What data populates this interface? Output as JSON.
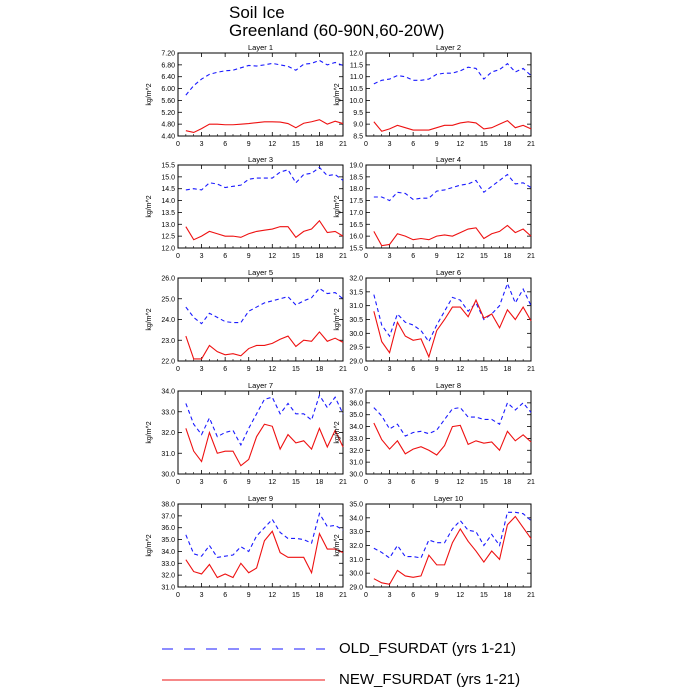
{
  "title": {
    "line1": "Soil Ice",
    "line2": "Greenland (60-90N,60-20W)"
  },
  "colors": {
    "old": "#1a1aff",
    "new": "#ee1111"
  },
  "legend": {
    "old_label": "OLD_FSURDAT (yrs 1-21)",
    "new_label": "NEW_FSURDAT (yrs 1-21)"
  },
  "chart_data": [
    {
      "type": "line",
      "title": "Layer 1",
      "ylabel": "kg/m^2",
      "xlim": [
        0,
        21
      ],
      "ylim": [
        4.4,
        7.2
      ],
      "yticks": [
        "4.40",
        "4.80",
        "5.20",
        "5.60",
        "6.00",
        "6.40",
        "6.80",
        "7.20"
      ],
      "xticks": [
        "0",
        "3",
        "6",
        "9",
        "12",
        "15",
        "18",
        "21"
      ],
      "x": [
        1,
        2,
        3,
        4,
        5,
        6,
        7,
        8,
        9,
        10,
        11,
        12,
        13,
        14,
        15,
        16,
        17,
        18,
        19,
        20,
        21
      ],
      "series": [
        {
          "name": "OLD_FSURDAT (yrs 1-21)",
          "style": "dashed",
          "values": [
            5.78,
            6.1,
            6.32,
            6.48,
            6.55,
            6.6,
            6.62,
            6.7,
            6.78,
            6.76,
            6.8,
            6.85,
            6.8,
            6.75,
            6.62,
            6.82,
            6.85,
            6.95,
            6.8,
            6.88,
            6.78
          ]
        },
        {
          "name": "NEW_FSURDAT (yrs 1-21)",
          "style": "solid",
          "values": [
            4.58,
            4.52,
            4.65,
            4.8,
            4.8,
            4.78,
            4.78,
            4.8,
            4.82,
            4.85,
            4.88,
            4.88,
            4.87,
            4.82,
            4.68,
            4.83,
            4.88,
            4.95,
            4.8,
            4.9,
            4.82
          ]
        }
      ]
    },
    {
      "type": "line",
      "title": "Layer 2",
      "ylabel": "kg/m^2",
      "xlim": [
        0,
        21
      ],
      "ylim": [
        8.5,
        12.0
      ],
      "yticks": [
        "8.5",
        "9.0",
        "9.5",
        "10.0",
        "10.5",
        "11.0",
        "11.5",
        "12.0"
      ],
      "xticks": [
        "0",
        "3",
        "6",
        "9",
        "12",
        "15",
        "18",
        "21"
      ],
      "x": [
        1,
        2,
        3,
        4,
        5,
        6,
        7,
        8,
        9,
        10,
        11,
        12,
        13,
        14,
        15,
        16,
        17,
        18,
        19,
        20,
        21
      ],
      "series": [
        {
          "name": "OLD_FSURDAT (yrs 1-21)",
          "style": "dashed",
          "values": [
            10.7,
            10.85,
            10.9,
            11.05,
            11.0,
            10.85,
            10.85,
            10.9,
            11.1,
            11.15,
            11.15,
            11.25,
            11.4,
            11.35,
            10.9,
            11.2,
            11.3,
            11.55,
            11.2,
            11.35,
            11.05
          ]
        },
        {
          "name": "NEW_FSURDAT (yrs 1-21)",
          "style": "solid",
          "values": [
            9.1,
            8.7,
            8.8,
            8.95,
            8.85,
            8.75,
            8.75,
            8.75,
            8.85,
            8.95,
            8.95,
            9.05,
            9.1,
            9.05,
            8.8,
            8.85,
            9.0,
            9.15,
            8.85,
            8.95,
            8.8
          ]
        }
      ]
    },
    {
      "type": "line",
      "title": "Layer 3",
      "ylabel": "kg/m^2",
      "xlim": [
        0,
        21
      ],
      "ylim": [
        12.0,
        15.5
      ],
      "yticks": [
        "12.0",
        "12.5",
        "13.0",
        "13.5",
        "14.0",
        "14.5",
        "15.0",
        "15.5"
      ],
      "xticks": [
        "0",
        "3",
        "6",
        "9",
        "12",
        "15",
        "18",
        "21"
      ],
      "x": [
        1,
        2,
        3,
        4,
        5,
        6,
        7,
        8,
        9,
        10,
        11,
        12,
        13,
        14,
        15,
        16,
        17,
        18,
        19,
        20,
        21
      ],
      "series": [
        {
          "name": "OLD_FSURDAT (yrs 1-21)",
          "style": "dashed",
          "values": [
            14.45,
            14.5,
            14.45,
            14.75,
            14.7,
            14.55,
            14.6,
            14.65,
            14.9,
            14.95,
            14.95,
            14.95,
            15.2,
            15.3,
            14.75,
            15.1,
            15.15,
            15.4,
            15.05,
            15.1,
            14.85
          ]
        },
        {
          "name": "NEW_FSURDAT (yrs 1-21)",
          "style": "solid",
          "values": [
            12.9,
            12.35,
            12.5,
            12.7,
            12.6,
            12.5,
            12.5,
            12.45,
            12.6,
            12.7,
            12.75,
            12.8,
            12.9,
            12.9,
            12.45,
            12.7,
            12.8,
            13.15,
            12.65,
            12.7,
            12.5
          ]
        }
      ]
    },
    {
      "type": "line",
      "title": "Layer 4",
      "ylabel": "kg/m^2",
      "xlim": [
        0,
        21
      ],
      "ylim": [
        15.5,
        19.0
      ],
      "yticks": [
        "15.5",
        "16.0",
        "16.5",
        "17.0",
        "17.5",
        "18.0",
        "18.5",
        "19.0"
      ],
      "xticks": [
        "0",
        "3",
        "6",
        "9",
        "12",
        "15",
        "18",
        "21"
      ],
      "x": [
        1,
        2,
        3,
        4,
        5,
        6,
        7,
        8,
        9,
        10,
        11,
        12,
        13,
        14,
        15,
        16,
        17,
        18,
        19,
        20,
        21
      ],
      "series": [
        {
          "name": "OLD_FSURDAT (yrs 1-21)",
          "style": "dashed",
          "values": [
            17.65,
            17.65,
            17.5,
            17.85,
            17.8,
            17.55,
            17.6,
            17.6,
            17.9,
            17.95,
            18.05,
            18.15,
            18.2,
            18.35,
            17.85,
            18.1,
            18.35,
            18.6,
            18.2,
            18.25,
            18.05
          ]
        },
        {
          "name": "NEW_FSURDAT (yrs 1-21)",
          "style": "solid",
          "values": [
            16.2,
            15.6,
            15.65,
            16.1,
            16.0,
            15.85,
            15.9,
            15.85,
            16.0,
            16.05,
            16.0,
            16.15,
            16.3,
            16.35,
            15.9,
            16.1,
            16.2,
            16.45,
            16.15,
            16.3,
            16.0
          ]
        }
      ]
    },
    {
      "type": "line",
      "title": "Layer 5",
      "ylabel": "kg/m^2",
      "xlim": [
        0,
        21
      ],
      "ylim": [
        22.0,
        26.0
      ],
      "yticks": [
        "22.0",
        "23.0",
        "24.0",
        "25.0",
        "26.0"
      ],
      "xticks": [
        "0",
        "3",
        "6",
        "9",
        "12",
        "15",
        "18",
        "21"
      ],
      "x": [
        1,
        2,
        3,
        4,
        5,
        6,
        7,
        8,
        9,
        10,
        11,
        12,
        13,
        14,
        15,
        16,
        17,
        18,
        19,
        20,
        21
      ],
      "series": [
        {
          "name": "OLD_FSURDAT (yrs 1-21)",
          "style": "dashed",
          "values": [
            24.6,
            24.1,
            23.8,
            24.3,
            24.1,
            23.9,
            23.85,
            23.85,
            24.4,
            24.6,
            24.8,
            24.9,
            25.0,
            25.1,
            24.7,
            24.9,
            25.05,
            25.5,
            25.25,
            25.3,
            25.0
          ]
        },
        {
          "name": "NEW_FSURDAT (yrs 1-21)",
          "style": "solid",
          "values": [
            23.2,
            22.1,
            22.1,
            22.75,
            22.45,
            22.3,
            22.35,
            22.25,
            22.6,
            22.75,
            22.75,
            22.85,
            23.05,
            23.2,
            22.7,
            23.0,
            22.95,
            23.4,
            22.95,
            23.1,
            22.9
          ]
        }
      ]
    },
    {
      "type": "line",
      "title": "Layer 6",
      "ylabel": "kg/m^2",
      "xlim": [
        0,
        21
      ],
      "ylim": [
        29.0,
        32.0
      ],
      "yticks": [
        "29.0",
        "29.5",
        "30.0",
        "30.5",
        "31.0",
        "31.5",
        "32.0"
      ],
      "xticks": [
        "0",
        "3",
        "6",
        "9",
        "12",
        "15",
        "18",
        "21"
      ],
      "x": [
        1,
        2,
        3,
        4,
        5,
        6,
        7,
        8,
        9,
        10,
        11,
        12,
        13,
        14,
        15,
        16,
        17,
        18,
        19,
        20,
        21
      ],
      "series": [
        {
          "name": "OLD_FSURDAT (yrs 1-21)",
          "style": "dashed",
          "values": [
            31.4,
            30.3,
            29.9,
            30.7,
            30.4,
            30.3,
            30.1,
            29.7,
            30.3,
            30.8,
            31.3,
            31.2,
            30.8,
            31.1,
            30.5,
            30.7,
            31.0,
            31.8,
            31.1,
            31.6,
            31.0
          ]
        },
        {
          "name": "NEW_FSURDAT (yrs 1-21)",
          "style": "solid",
          "values": [
            30.8,
            29.7,
            29.3,
            30.4,
            29.9,
            29.75,
            29.8,
            29.15,
            30.1,
            30.5,
            30.95,
            30.95,
            30.6,
            31.2,
            30.55,
            30.7,
            30.2,
            30.85,
            30.5,
            30.95,
            30.45
          ]
        }
      ]
    },
    {
      "type": "line",
      "title": "Layer 7",
      "ylabel": "kg/m^2",
      "xlim": [
        0,
        21
      ],
      "ylim": [
        30.0,
        34.0
      ],
      "yticks": [
        "30.0",
        "31.0",
        "32.0",
        "33.0",
        "34.0"
      ],
      "xticks": [
        "0",
        "3",
        "6",
        "9",
        "12",
        "15",
        "18",
        "21"
      ],
      "x": [
        1,
        2,
        3,
        4,
        5,
        6,
        7,
        8,
        9,
        10,
        11,
        12,
        13,
        14,
        15,
        16,
        17,
        18,
        19,
        20,
        21
      ],
      "series": [
        {
          "name": "OLD_FSURDAT (yrs 1-21)",
          "style": "dashed",
          "values": [
            33.4,
            32.4,
            31.9,
            32.7,
            31.8,
            32.0,
            32.1,
            31.4,
            32.2,
            32.9,
            33.6,
            33.7,
            32.9,
            33.4,
            32.9,
            32.9,
            32.6,
            33.8,
            33.2,
            33.7,
            32.9
          ]
        },
        {
          "name": "NEW_FSURDAT (yrs 1-21)",
          "style": "solid",
          "values": [
            32.2,
            31.1,
            30.6,
            32.0,
            31.0,
            31.1,
            31.1,
            30.4,
            30.7,
            31.8,
            32.4,
            32.3,
            31.2,
            31.9,
            31.5,
            31.6,
            31.2,
            32.2,
            31.3,
            32.1,
            31.3
          ]
        }
      ]
    },
    {
      "type": "line",
      "title": "Layer 8",
      "ylabel": "kg/m^2",
      "xlim": [
        0,
        21
      ],
      "ylim": [
        30.0,
        37.0
      ],
      "yticks": [
        "30.0",
        "31.0",
        "32.0",
        "33.0",
        "34.0",
        "35.0",
        "36.0",
        "37.0"
      ],
      "xticks": [
        "0",
        "3",
        "6",
        "9",
        "12",
        "15",
        "18",
        "21"
      ],
      "x": [
        1,
        2,
        3,
        4,
        5,
        6,
        7,
        8,
        9,
        10,
        11,
        12,
        13,
        14,
        15,
        16,
        17,
        18,
        19,
        20,
        21
      ],
      "series": [
        {
          "name": "OLD_FSURDAT (yrs 1-21)",
          "style": "dashed",
          "values": [
            35.6,
            34.9,
            33.8,
            34.2,
            33.2,
            33.5,
            33.6,
            33.4,
            33.7,
            34.6,
            35.5,
            35.6,
            34.8,
            34.8,
            34.6,
            34.6,
            34.2,
            36.0,
            35.4,
            36.0,
            35.2
          ]
        },
        {
          "name": "NEW_FSURDAT (yrs 1-21)",
          "style": "solid",
          "values": [
            34.3,
            32.9,
            32.1,
            32.8,
            31.7,
            32.1,
            32.3,
            32.0,
            31.6,
            32.4,
            34.0,
            34.1,
            32.5,
            32.8,
            32.6,
            32.7,
            32.0,
            33.6,
            32.8,
            33.3,
            32.7
          ]
        }
      ]
    },
    {
      "type": "line",
      "title": "Layer 9",
      "ylabel": "kg/m^2",
      "xlim": [
        0,
        21
      ],
      "ylim": [
        31.0,
        38.0
      ],
      "yticks": [
        "31.0",
        "32.0",
        "33.0",
        "34.0",
        "35.0",
        "36.0",
        "37.0",
        "38.0"
      ],
      "xticks": [
        "0",
        "3",
        "6",
        "9",
        "12",
        "15",
        "18",
        "21"
      ],
      "x": [
        1,
        2,
        3,
        4,
        5,
        6,
        7,
        8,
        9,
        10,
        11,
        12,
        13,
        14,
        15,
        16,
        17,
        18,
        19,
        20,
        21
      ],
      "series": [
        {
          "name": "OLD_FSURDAT (yrs 1-21)",
          "style": "dashed",
          "values": [
            35.4,
            33.8,
            33.6,
            34.5,
            33.5,
            33.6,
            33.7,
            34.4,
            34.0,
            35.3,
            36.0,
            36.7,
            35.6,
            35.1,
            35.1,
            35.0,
            34.7,
            37.2,
            36.1,
            36.2,
            35.8
          ]
        },
        {
          "name": "NEW_FSURDAT (yrs 1-21)",
          "style": "solid",
          "values": [
            33.3,
            32.3,
            32.1,
            32.9,
            31.8,
            32.1,
            31.8,
            33.0,
            32.2,
            32.6,
            34.9,
            35.7,
            33.9,
            33.5,
            33.5,
            33.5,
            32.2,
            35.5,
            34.2,
            34.2,
            33.9
          ]
        }
      ]
    },
    {
      "type": "line",
      "title": "Layer 10",
      "ylabel": "kg/m^2",
      "xlim": [
        0,
        21
      ],
      "ylim": [
        29.0,
        35.0
      ],
      "yticks": [
        "29.0",
        "30.0",
        "31.0",
        "32.0",
        "33.0",
        "34.0",
        "35.0"
      ],
      "xticks": [
        "0",
        "3",
        "6",
        "9",
        "12",
        "15",
        "18",
        "21"
      ],
      "x": [
        1,
        2,
        3,
        4,
        5,
        6,
        7,
        8,
        9,
        10,
        11,
        12,
        13,
        14,
        15,
        16,
        17,
        18,
        19,
        20,
        21
      ],
      "series": [
        {
          "name": "OLD_FSURDAT (yrs 1-21)",
          "style": "dashed",
          "values": [
            31.8,
            31.5,
            31.1,
            32.0,
            31.2,
            31.2,
            31.1,
            32.4,
            32.2,
            32.2,
            33.2,
            33.8,
            33.1,
            33.0,
            32.0,
            32.8,
            32.0,
            34.4,
            34.4,
            34.3,
            33.8
          ]
        },
        {
          "name": "NEW_FSURDAT (yrs 1-21)",
          "style": "solid",
          "values": [
            29.6,
            29.3,
            29.2,
            30.2,
            29.8,
            29.7,
            29.8,
            31.3,
            30.6,
            30.6,
            32.2,
            33.2,
            32.3,
            31.6,
            30.8,
            31.6,
            31.0,
            33.5,
            34.1,
            33.3,
            32.5
          ]
        }
      ]
    }
  ]
}
